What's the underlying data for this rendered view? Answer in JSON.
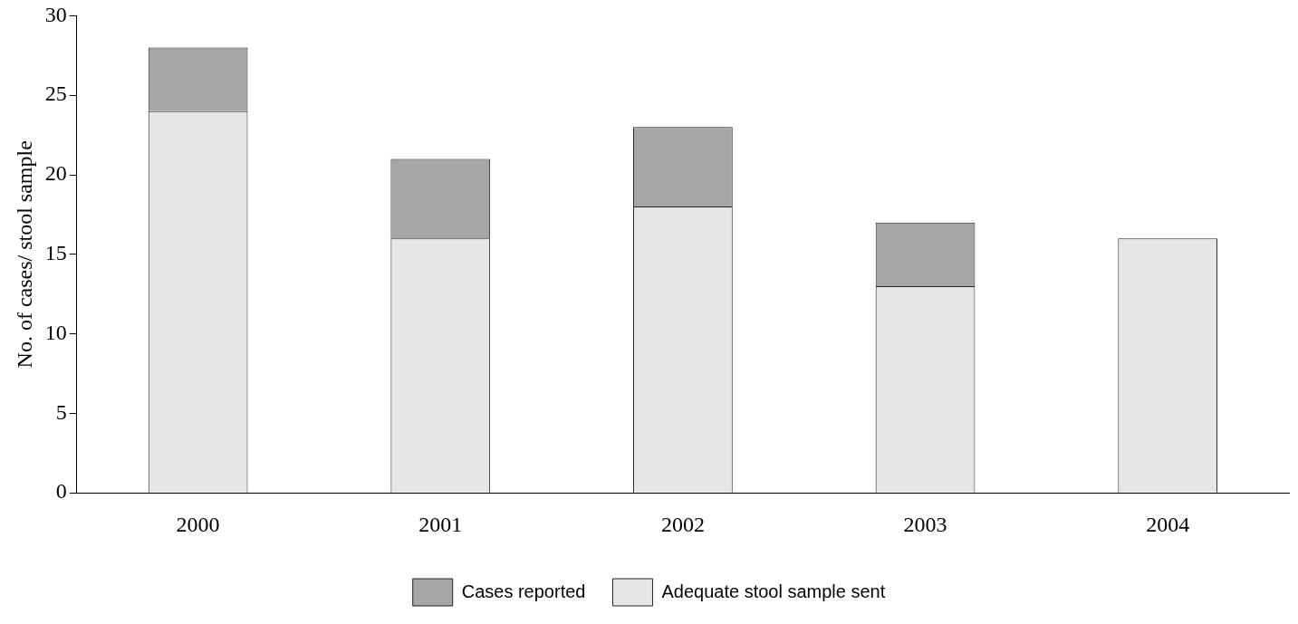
{
  "chart_data": {
    "type": "bar",
    "stacked": true,
    "ylabel": "No. of cases/ stool sample",
    "categories": [
      "2000",
      "2001",
      "2002",
      "2003",
      "2004"
    ],
    "series": [
      {
        "name": "Adequate stool sample sent",
        "color": "#e6e6e6",
        "values": [
          24,
          16,
          18,
          13,
          16
        ]
      },
      {
        "name": "Cases reported",
        "color": "#a6a6a6",
        "values": [
          4,
          5,
          5,
          4,
          0
        ]
      }
    ],
    "ylim": [
      0,
      30
    ],
    "yticks": [
      0,
      5,
      10,
      15,
      20,
      25,
      30
    ],
    "grid": false,
    "legend": "bottom"
  }
}
